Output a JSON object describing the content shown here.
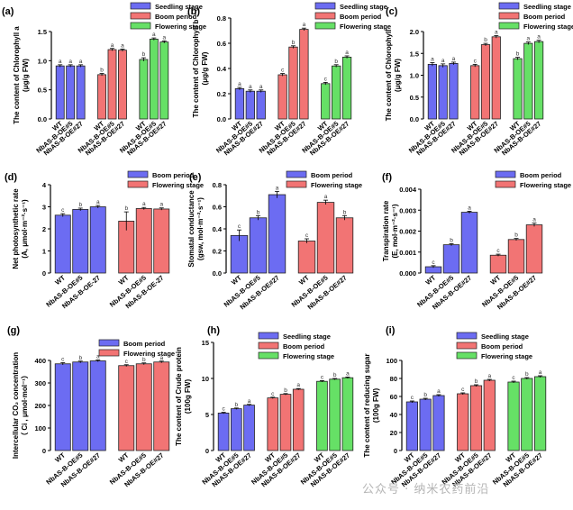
{
  "colors": {
    "seedling": "#6c6cf2",
    "boom": "#f27474",
    "flowering": "#66e066",
    "axis": "#000000"
  },
  "chart_data": [
    {
      "id": "a",
      "panel_label": "(a)",
      "type": "bar",
      "ylabel": [
        "The content of Chlorophyll a",
        "(μg/g FW)"
      ],
      "ylim": [
        0,
        1.5
      ],
      "yticks": [
        0,
        0.5,
        1.0,
        1.5
      ],
      "tick_labels": [
        "0.0",
        "0.5",
        "1.0",
        "1.5"
      ],
      "groups": [
        {
          "name": "Seedling stage",
          "color_key": "seedling",
          "categories": [
            "WT",
            "NbAS-B-OE#5",
            "NbAS-B-OE#27"
          ],
          "values": [
            0.91,
            0.91,
            0.91
          ],
          "errors": [
            0.02,
            0.02,
            0.02
          ],
          "letters": [
            "a",
            "a",
            "a"
          ]
        },
        {
          "name": "Boom period",
          "color_key": "boom",
          "categories": [
            "WT",
            "NbAS-B-OE#5",
            "NbAS-B-OE#27"
          ],
          "values": [
            0.76,
            1.19,
            1.18
          ],
          "errors": [
            0.02,
            0.02,
            0.02
          ],
          "letters": [
            "b",
            "a",
            "a"
          ]
        },
        {
          "name": "Flowering stage",
          "color_key": "flowering",
          "categories": [
            "WT",
            "NbAS-B-OE#5",
            "NbAS-B-OE#27"
          ],
          "values": [
            1.02,
            1.37,
            1.32
          ],
          "errors": [
            0.03,
            0.02,
            0.02
          ],
          "letters": [
            "b",
            "a",
            "a"
          ]
        }
      ],
      "legend": [
        "Seedling stage",
        "Boom period",
        "Flowering stage"
      ]
    },
    {
      "id": "b",
      "panel_label": "(b)",
      "type": "bar",
      "ylabel": [
        "The content of Chlorophyll b",
        "(μg/g FW)"
      ],
      "ylim": [
        0,
        0.8
      ],
      "yticks": [
        0,
        0.2,
        0.4,
        0.6,
        0.8
      ],
      "tick_labels": [
        "0.0",
        "0.2",
        "0.4",
        "0.6",
        "0.8"
      ],
      "groups": [
        {
          "name": "Seedling stage",
          "color_key": "seedling",
          "categories": [
            "WT",
            "NbAS-B-OE#5",
            "NbAS-B-OE#27"
          ],
          "values": [
            0.24,
            0.22,
            0.22
          ],
          "errors": [
            0.01,
            0.01,
            0.01
          ],
          "letters": [
            "a",
            "a",
            "a"
          ]
        },
        {
          "name": "Boom period",
          "color_key": "boom",
          "categories": [
            "WT",
            "NbAS-B-OE#5",
            "NbAS-B-OE#27"
          ],
          "values": [
            0.35,
            0.57,
            0.71
          ],
          "errors": [
            0.01,
            0.01,
            0.01
          ],
          "letters": [
            "c",
            "b",
            "a"
          ]
        },
        {
          "name": "Flowering stage",
          "color_key": "flowering",
          "categories": [
            "WT",
            "NbAS-B-OE#5",
            "NbAS-B-OE#27"
          ],
          "values": [
            0.28,
            0.42,
            0.49
          ],
          "errors": [
            0.01,
            0.01,
            0.01
          ],
          "letters": [
            "c",
            "b",
            "a"
          ]
        }
      ],
      "legend": [
        "Seedling stage",
        "Boom period",
        "Flowering stage"
      ]
    },
    {
      "id": "c",
      "panel_label": "(c)",
      "type": "bar",
      "ylabel": [
        "The content of Chlorophyll",
        "(μg/g FW)"
      ],
      "ylim": [
        0,
        2.0
      ],
      "yticks": [
        0,
        0.5,
        1.0,
        1.5,
        2.0
      ],
      "tick_labels": [
        "0.0",
        "0.5",
        "1.0",
        "1.5",
        "2.0"
      ],
      "groups": [
        {
          "name": "Seedling stage",
          "color_key": "seedling",
          "categories": [
            "WT",
            "NbAS-B-OE#5",
            "NbAS-B-OE#27"
          ],
          "values": [
            1.25,
            1.22,
            1.27
          ],
          "errors": [
            0.04,
            0.04,
            0.03
          ],
          "letters": [
            "a",
            "a",
            "a"
          ]
        },
        {
          "name": "Boom period",
          "color_key": "boom",
          "categories": [
            "WT",
            "NbAS-B-OE#5",
            "NbAS-B-OE#27"
          ],
          "values": [
            1.22,
            1.7,
            1.88
          ],
          "errors": [
            0.03,
            0.03,
            0.03
          ],
          "letters": [
            "c",
            "b",
            "a"
          ]
        },
        {
          "name": "Flowering stage",
          "color_key": "flowering",
          "categories": [
            "WT",
            "NbAS-B-OE#5",
            "NbAS-B-OE#27"
          ],
          "values": [
            1.38,
            1.73,
            1.77
          ],
          "errors": [
            0.03,
            0.03,
            0.03
          ],
          "letters": [
            "b",
            "a",
            "a"
          ]
        }
      ],
      "legend": [
        "Seedling stage",
        "Boom period",
        "Flowering stage"
      ]
    },
    {
      "id": "d",
      "panel_label": "(d)",
      "type": "bar",
      "ylabel": [
        "Net photosynthetic rate",
        "(A, μmol·m⁻²·s⁻¹)"
      ],
      "ylim": [
        0,
        4
      ],
      "yticks": [
        0,
        1,
        2,
        3,
        4
      ],
      "tick_labels": [
        "0",
        "1",
        "2",
        "3",
        "4"
      ],
      "groups": [
        {
          "name": "Boom period",
          "color_key": "seedling",
          "categories": [
            "WT",
            "NbAS-B-OE#5",
            "NbAS-B-OE-27"
          ],
          "values": [
            2.62,
            2.88,
            3.0
          ],
          "errors": [
            0.07,
            0.06,
            0.06
          ],
          "letters": [
            "c",
            "b",
            "a"
          ]
        },
        {
          "name": "Flowering stage",
          "color_key": "boom",
          "categories": [
            "WT",
            "NbAS-B-OE#5",
            "NbAS-B-OE-27"
          ],
          "values": [
            2.35,
            2.92,
            2.9
          ],
          "errors": [
            0.42,
            0.05,
            0.05
          ],
          "letters": [
            "b",
            "a",
            "a"
          ]
        }
      ],
      "legend": [
        "Boom period",
        "Flowering stage"
      ]
    },
    {
      "id": "e",
      "panel_label": "(e)",
      "type": "bar",
      "ylabel": [
        "Stomatal conductance",
        "(gsw, mol·m⁻²·s⁻¹)"
      ],
      "ylim": [
        0,
        0.8
      ],
      "yticks": [
        0,
        0.2,
        0.4,
        0.6,
        0.8
      ],
      "tick_labels": [
        "0.0",
        "0.2",
        "0.4",
        "0.6",
        "0.8"
      ],
      "groups": [
        {
          "name": "Boom period",
          "color_key": "seedling",
          "categories": [
            "WT",
            "NbAS-B-OE#5",
            "NbAS-B-OE#27"
          ],
          "values": [
            0.34,
            0.5,
            0.71
          ],
          "errors": [
            0.05,
            0.02,
            0.03
          ],
          "letters": [
            "c",
            "b",
            "a"
          ]
        },
        {
          "name": "Flowering stage",
          "color_key": "boom",
          "categories": [
            "WT",
            "NbAS-B-OE#5",
            "NbAS-B-OE#27"
          ],
          "values": [
            0.29,
            0.64,
            0.5
          ],
          "errors": [
            0.02,
            0.02,
            0.02
          ],
          "letters": [
            "c",
            "a",
            "b"
          ]
        }
      ],
      "legend": [
        "Boom period",
        "Flowering stage"
      ]
    },
    {
      "id": "f",
      "panel_label": "(f)",
      "type": "bar",
      "ylabel": [
        "Transpiration rate",
        "(E, mol·m⁻²·s⁻¹)"
      ],
      "ylim": [
        0,
        0.004
      ],
      "yticks": [
        0,
        0.001,
        0.002,
        0.003,
        0.004
      ],
      "tick_labels": [
        "0.000",
        "0.001",
        "0.002",
        "0.003",
        "0.004"
      ],
      "groups": [
        {
          "name": "Boom period",
          "color_key": "seedling",
          "categories": [
            "WT",
            "NbAS-B-OE#5",
            "NbAS-B-OE#27"
          ],
          "values": [
            0.0003,
            0.00135,
            0.0029
          ],
          "errors": [
            5e-05,
            5e-05,
            5e-05
          ],
          "letters": [
            "c",
            "b",
            "a"
          ]
        },
        {
          "name": "Flowering stage",
          "color_key": "boom",
          "categories": [
            "WT",
            "NbAS-B-OE#5",
            "NbAS-B-OE#27"
          ],
          "values": [
            0.00085,
            0.0016,
            0.0023
          ],
          "errors": [
            5e-05,
            5e-05,
            8e-05
          ],
          "letters": [
            "c",
            "b",
            "a"
          ]
        }
      ],
      "legend": [
        "Boom period",
        "Flowering stage"
      ]
    },
    {
      "id": "g",
      "panel_label": "(g)",
      "type": "bar",
      "ylabel": [
        "Intercellular CO₂ concentration",
        "（ Ci , μmol·mol⁻¹）"
      ],
      "ylim": [
        0,
        400
      ],
      "yticks": [
        0,
        100,
        200,
        300,
        400
      ],
      "tick_labels": [
        "0",
        "100",
        "200",
        "300",
        "400"
      ],
      "groups": [
        {
          "name": "Boom period",
          "color_key": "seedling",
          "categories": [
            "WT",
            "NbAS-B-OE#5",
            "NbAS-B-OE#27"
          ],
          "values": [
            385,
            393,
            398
          ],
          "errors": [
            5,
            4,
            4
          ],
          "letters": [
            "c",
            "b",
            "a"
          ]
        },
        {
          "name": "Flowering stage",
          "color_key": "boom",
          "categories": [
            "WT",
            "NbAS-B-OE#5",
            "NbAS-B-OE#27"
          ],
          "values": [
            377,
            385,
            393
          ],
          "errors": [
            4,
            4,
            4
          ],
          "letters": [
            "c",
            "b",
            "a"
          ]
        }
      ],
      "legend": [
        "Boom period",
        "Flowering stage"
      ]
    },
    {
      "id": "h",
      "panel_label": "(h)",
      "type": "bar",
      "ylabel": [
        "The content of Crude protein",
        "(100g FW)"
      ],
      "ylim": [
        0,
        15
      ],
      "yticks": [
        0,
        5,
        10,
        15
      ],
      "tick_labels": [
        "0",
        "5",
        "10",
        "15"
      ],
      "groups": [
        {
          "name": "Seedling stage",
          "color_key": "seedling",
          "categories": [
            "WT",
            "NbAS-B-OE#5",
            "NbAS-B-OE#27"
          ],
          "values": [
            5.2,
            5.8,
            6.3
          ],
          "errors": [
            0.1,
            0.1,
            0.1
          ],
          "letters": [
            "c",
            "b",
            "a"
          ]
        },
        {
          "name": "Boom period",
          "color_key": "boom",
          "categories": [
            "WT",
            "NbAS-B-OE#5",
            "NbAS-B-OE#27"
          ],
          "values": [
            7.3,
            7.8,
            8.5
          ],
          "errors": [
            0.1,
            0.1,
            0.1
          ],
          "letters": [
            "c",
            "b",
            "a"
          ]
        },
        {
          "name": "Flowering stage",
          "color_key": "flowering",
          "categories": [
            "WT",
            "NbAS-B-OE#5",
            "NbAS-B-OE#27"
          ],
          "values": [
            9.6,
            9.9,
            10.1
          ],
          "errors": [
            0.1,
            0.1,
            0.1
          ],
          "letters": [
            "c",
            "b",
            "a"
          ]
        }
      ],
      "legend": [
        "Seedling stage",
        "Boom period",
        "Flowering stage"
      ]
    },
    {
      "id": "i",
      "panel_label": "(i)",
      "type": "bar",
      "ylabel": [
        "The content of reducing sugar",
        "(100g FW)"
      ],
      "ylim": [
        0,
        100
      ],
      "yticks": [
        0,
        20,
        40,
        60,
        80,
        100
      ],
      "tick_labels": [
        "0",
        "20",
        "40",
        "60",
        "80",
        "100"
      ],
      "groups": [
        {
          "name": "Seedling stage",
          "color_key": "seedling",
          "categories": [
            "WT",
            "NbAS-B-OE#5",
            "NbAS-B-OE#27"
          ],
          "values": [
            54,
            57,
            61
          ],
          "errors": [
            1,
            1,
            1
          ],
          "letters": [
            "c",
            "b",
            "a"
          ]
        },
        {
          "name": "Boom period",
          "color_key": "boom",
          "categories": [
            "WT",
            "NbAS-B-OE#5",
            "NbAS-B-OE#27"
          ],
          "values": [
            63,
            72,
            78
          ],
          "errors": [
            1,
            1,
            1
          ],
          "letters": [
            "c",
            "b",
            "a"
          ]
        },
        {
          "name": "Flowering stage",
          "color_key": "flowering",
          "categories": [
            "WT",
            "NbAS-B-OE#5",
            "NbAS-B-OE#27"
          ],
          "values": [
            76,
            80,
            82
          ],
          "errors": [
            1,
            1,
            1
          ],
          "letters": [
            "c",
            "b",
            "a"
          ]
        }
      ],
      "legend": [
        "Seedling stage",
        "Boom period",
        "Flowering stage"
      ]
    }
  ],
  "watermark": "公众号 · 纳米农药前沿"
}
